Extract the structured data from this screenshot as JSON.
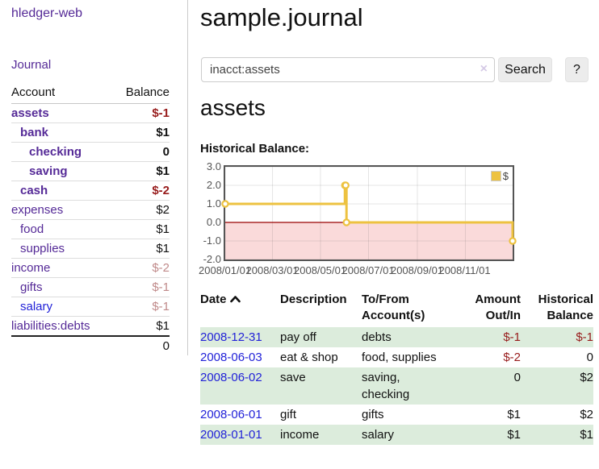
{
  "colors": {
    "purple": "#552a97",
    "blue": "#2222d8",
    "strong_negative": "#971b1b",
    "soft_negative": "#c08a8a",
    "accent": "#edc240",
    "green_row": "#dcecdc"
  },
  "app": {
    "title": "hledger-web",
    "nav_journal": "Journal"
  },
  "sidebar": {
    "accounts": {
      "headers": {
        "account": "Account",
        "balance": "Balance"
      },
      "rows": [
        {
          "account": "assets",
          "balance": "$-1",
          "depth": 0,
          "bold": true,
          "negative": "strong",
          "link": "purple"
        },
        {
          "account": "bank",
          "balance": "$1",
          "depth": 1,
          "bold": true,
          "negative": "none",
          "link": "purple"
        },
        {
          "account": "checking",
          "balance": "0",
          "depth": 2,
          "bold": true,
          "negative": "none",
          "link": "purple"
        },
        {
          "account": "saving",
          "balance": "$1",
          "depth": 2,
          "bold": true,
          "negative": "none",
          "link": "purple"
        },
        {
          "account": "cash",
          "balance": "$-2",
          "depth": 1,
          "bold": true,
          "negative": "strong",
          "link": "purple"
        },
        {
          "account": "expenses",
          "balance": "$2",
          "depth": 0,
          "bold": false,
          "negative": "none",
          "link": "purple"
        },
        {
          "account": "food",
          "balance": "$1",
          "depth": 1,
          "bold": false,
          "negative": "none",
          "link": "purple"
        },
        {
          "account": "supplies",
          "balance": "$1",
          "depth": 1,
          "bold": false,
          "negative": "none",
          "link": "purple"
        },
        {
          "account": "income",
          "balance": "$-2",
          "depth": 0,
          "bold": false,
          "negative": "soft",
          "link": "purple"
        },
        {
          "account": "gifts",
          "balance": "$-1",
          "depth": 1,
          "bold": false,
          "negative": "soft",
          "link": "purple"
        },
        {
          "account": "salary",
          "balance": "$-1",
          "depth": 1,
          "bold": false,
          "negative": "soft",
          "link": "blue"
        },
        {
          "account": "liabilities:debts",
          "balance": "$1",
          "depth": 0,
          "bold": false,
          "negative": "none",
          "link": "purple"
        }
      ],
      "total": "0"
    }
  },
  "main": {
    "title": "sample.journal",
    "search": {
      "value": "inacct:assets",
      "clear_icon": "×",
      "button": "Search",
      "help_button": "?"
    },
    "account_heading": "assets",
    "chart_label": "Historical Balance:"
  },
  "chart_data": {
    "type": "line",
    "title": "Historical Balance of assets",
    "style": "step",
    "series": [
      {
        "name": "$",
        "color": "#edc240",
        "points": [
          [
            "2008-01-01",
            1
          ],
          [
            "2008-06-01",
            2
          ],
          [
            "2008-06-02",
            2
          ],
          [
            "2008-06-03",
            0
          ],
          [
            "2008-12-31",
            -1
          ]
        ]
      }
    ],
    "x_range": [
      "2008-01-01",
      "2008-12-31"
    ],
    "x_ticks": [
      "2008/01/01",
      "2008/03/01",
      "2008/05/01",
      "2008/07/01",
      "2008/09/01",
      "2008/11/01"
    ],
    "y_ticks": [
      "3.0",
      "2.0",
      "1.0",
      "0.0",
      "-1.0",
      "-2.0"
    ],
    "ylim": [
      -2,
      3
    ],
    "grid": true,
    "negative_region_fill": "#fadada",
    "zero_line_color": "#990000",
    "legend": {
      "position": "top-right",
      "label": "$"
    }
  },
  "register": {
    "headers": {
      "date": "Date",
      "description": "Description",
      "accounts": "To/From Account(s)",
      "amount": "Amount Out/In",
      "balance": "Historical Balance"
    },
    "rows": [
      {
        "date": "2008-12-31",
        "description": "pay off",
        "accounts": "debts",
        "amount": "$-1",
        "balance": "$-1"
      },
      {
        "date": "2008-06-03",
        "description": "eat & shop",
        "accounts": "food, supplies",
        "amount": "$-2",
        "balance": "0"
      },
      {
        "date": "2008-06-02",
        "description": "save",
        "accounts": "saving, checking",
        "amount": "0",
        "balance": "$2"
      },
      {
        "date": "2008-06-01",
        "description": "gift",
        "accounts": "gifts",
        "amount": "$1",
        "balance": "$2"
      },
      {
        "date": "2008-01-01",
        "description": "income",
        "accounts": "salary",
        "amount": "$1",
        "balance": "$1"
      }
    ]
  }
}
